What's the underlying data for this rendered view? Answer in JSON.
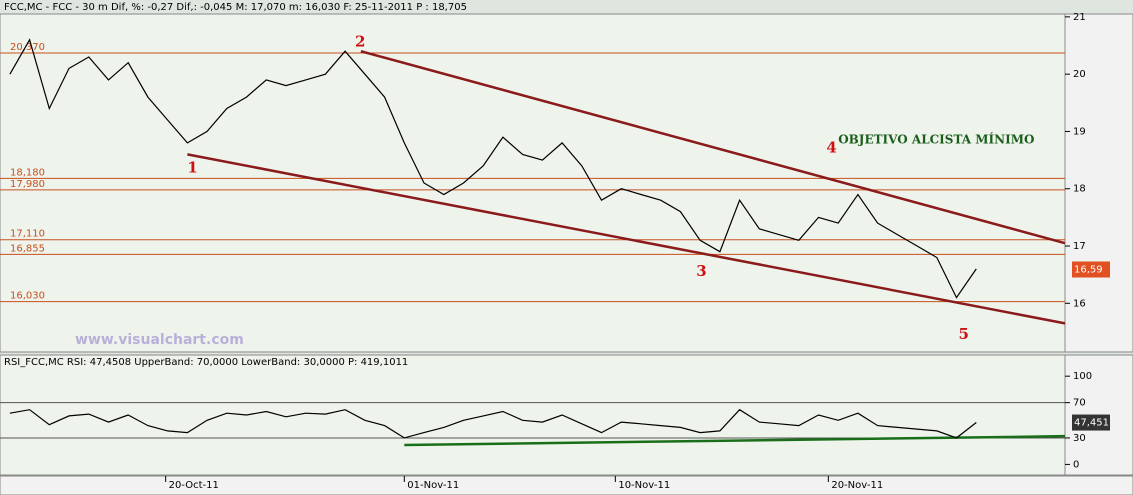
{
  "chart_data": [
    {
      "type": "line",
      "title": "FCC,MC - FCC -   30 m Dif, %: -0,27 Dif,: -0,045 M: 17,070 m: 16,030 F: 25-11-2011 P : 18,705",
      "watermark": "www.visualchart.com",
      "xlim": [
        -0.5,
        53.5
      ],
      "ylim": [
        15.15,
        21.05
      ],
      "yticks": [
        16,
        17,
        18,
        19,
        20,
        21
      ],
      "xticks": [
        {
          "value": 7.9,
          "label": "20-Oct-11"
        },
        {
          "value": 20,
          "label": "01-Nov-11"
        },
        {
          "value": 30.7,
          "label": "10-Nov-11"
        },
        {
          "value": 41.5,
          "label": "20-Nov-11"
        }
      ],
      "x": [
        0,
        1,
        2,
        3,
        4,
        5,
        6,
        7,
        8,
        9,
        10,
        11,
        12,
        13,
        14,
        15,
        16,
        17,
        18,
        19,
        20,
        21,
        22,
        23,
        24,
        25,
        26,
        27,
        28,
        29,
        30,
        31,
        32,
        33,
        34,
        35,
        36,
        37,
        38,
        39,
        40,
        41,
        42,
        43,
        44,
        45,
        46,
        47,
        48,
        49
      ],
      "series": [
        {
          "name": "FCC",
          "color": "#000000",
          "values": [
            20.0,
            20.6,
            19.4,
            20.1,
            20.3,
            19.9,
            20.2,
            19.6,
            19.2,
            18.8,
            19.0,
            19.4,
            19.6,
            19.9,
            19.8,
            19.9,
            20.0,
            20.4,
            20.0,
            19.6,
            18.8,
            18.1,
            17.9,
            18.1,
            18.4,
            18.9,
            18.6,
            18.5,
            18.8,
            18.4,
            17.8,
            18.0,
            17.9,
            17.8,
            17.6,
            17.1,
            16.9,
            17.8,
            17.3,
            17.2,
            17.1,
            17.5,
            17.4,
            17.9,
            17.4,
            17.2,
            17.0,
            16.8,
            16.1,
            16.6
          ]
        }
      ],
      "levels": [
        {
          "value": 20.37,
          "label": "20,370"
        },
        {
          "value": 18.18,
          "label": "18,180"
        },
        {
          "value": 17.98,
          "label": "17,980"
        },
        {
          "value": 17.11,
          "label": "17,110"
        },
        {
          "value": 16.855,
          "label": "16,855"
        },
        {
          "value": 16.03,
          "label": "16,030"
        }
      ],
      "level_color": "#c8501e",
      "trendlines": [
        {
          "x": [
            17.8,
            53.5
          ],
          "y": [
            20.4,
            17.05
          ]
        },
        {
          "x": [
            9,
            53.5
          ],
          "y": [
            18.6,
            15.65
          ]
        }
      ],
      "trend_color": "#8b1a1a",
      "annotations": [
        {
          "text": "1",
          "x": 9,
          "y": 18.35
        },
        {
          "text": "2",
          "x": 17.5,
          "y": 20.55
        },
        {
          "text": "3",
          "x": 34.8,
          "y": 16.55
        },
        {
          "text": "4",
          "x": 41.4,
          "y": 18.7
        },
        {
          "text": "5",
          "x": 48.1,
          "y": 15.45
        }
      ],
      "target": {
        "text": "OBJETIVO ALCISTA MÍNIMO",
        "x": 42,
        "y": 18.85
      },
      "last": {
        "value": 16.59,
        "label": "16,59"
      }
    },
    {
      "type": "line",
      "title": "RSI_FCC,MC RSI: 47,4508 UpperBand: 70,0000 LowerBand: 30,0000 P: 419,1011",
      "xlim": [
        -0.5,
        53.5
      ],
      "ylim": [
        -12,
        124
      ],
      "yticks": [
        0,
        30,
        70,
        100
      ],
      "x": [
        0,
        1,
        2,
        3,
        4,
        5,
        6,
        7,
        8,
        9,
        10,
        11,
        12,
        13,
        14,
        15,
        16,
        17,
        18,
        19,
        20,
        21,
        22,
        23,
        24,
        25,
        26,
        27,
        28,
        29,
        30,
        31,
        32,
        33,
        34,
        35,
        36,
        37,
        38,
        39,
        40,
        41,
        42,
        43,
        44,
        45,
        46,
        47,
        48,
        49
      ],
      "series": [
        {
          "name": "RSI",
          "color": "#000000",
          "values": [
            58,
            62,
            45,
            55,
            57,
            48,
            56,
            44,
            38,
            36,
            50,
            58,
            56,
            60,
            54,
            58,
            57,
            62,
            50,
            44,
            30,
            36,
            42,
            50,
            55,
            60,
            50,
            48,
            56,
            46,
            36,
            48,
            46,
            44,
            42,
            36,
            38,
            62,
            48,
            46,
            44,
            56,
            50,
            58,
            44,
            42,
            40,
            38,
            30,
            47.451
          ]
        }
      ],
      "bands": [
        70,
        30
      ],
      "trendlines": [
        {
          "x": [
            20,
            53.5
          ],
          "y": [
            22,
            32
          ]
        }
      ],
      "trend_color": "#1a6e1a",
      "last": {
        "value": 47.451,
        "label": "47,451"
      }
    }
  ]
}
